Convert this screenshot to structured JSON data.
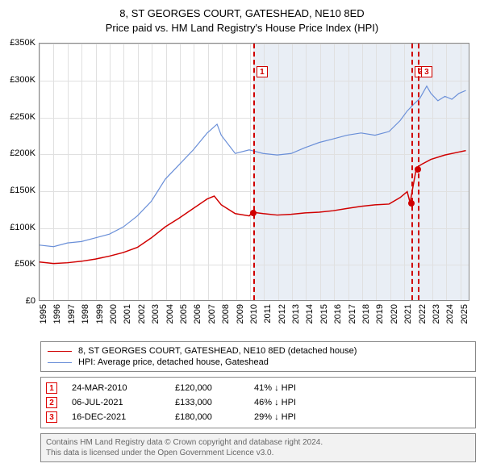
{
  "title_line1": "8, ST GEORGES COURT, GATESHEAD, NE10 8ED",
  "title_line2": "Price paid vs. HM Land Registry's House Price Index (HPI)",
  "chart": {
    "type": "line",
    "y_min": 0,
    "y_max": 350000,
    "y_ticks": [
      0,
      50000,
      100000,
      150000,
      200000,
      250000,
      300000,
      350000
    ],
    "y_tick_labels": [
      "£0",
      "£50K",
      "£100K",
      "£150K",
      "£200K",
      "£250K",
      "£300K",
      "£350K"
    ],
    "x_min": 1995,
    "x_max": 2025.7,
    "x_ticks": [
      1995,
      1996,
      1997,
      1998,
      1999,
      2000,
      2001,
      2002,
      2003,
      2004,
      2005,
      2006,
      2007,
      2008,
      2009,
      2010,
      2011,
      2012,
      2013,
      2014,
      2015,
      2016,
      2017,
      2018,
      2019,
      2020,
      2021,
      2022,
      2023,
      2024,
      2025
    ],
    "grid_color": "#e0e0e0",
    "background_color": "#ffffff",
    "shade_color": "#e9eef5",
    "shade_start": 2010.23,
    "series": [
      {
        "name": "property",
        "label": "8, ST GEORGES COURT, GATESHEAD, NE10 8ED (detached house)",
        "color": "#d00000",
        "width": 1.5,
        "data": [
          [
            1995,
            52000
          ],
          [
            1996,
            50000
          ],
          [
            1997,
            51000
          ],
          [
            1998,
            53000
          ],
          [
            1999,
            56000
          ],
          [
            2000,
            60000
          ],
          [
            2001,
            65000
          ],
          [
            2002,
            72000
          ],
          [
            2003,
            85000
          ],
          [
            2004,
            100000
          ],
          [
            2005,
            112000
          ],
          [
            2006,
            125000
          ],
          [
            2007,
            138000
          ],
          [
            2007.5,
            142000
          ],
          [
            2008,
            130000
          ],
          [
            2009,
            118000
          ],
          [
            2010,
            115000
          ],
          [
            2010.23,
            120000
          ],
          [
            2011,
            118000
          ],
          [
            2012,
            116000
          ],
          [
            2013,
            117000
          ],
          [
            2014,
            119000
          ],
          [
            2015,
            120000
          ],
          [
            2016,
            122000
          ],
          [
            2017,
            125000
          ],
          [
            2018,
            128000
          ],
          [
            2019,
            130000
          ],
          [
            2020,
            131000
          ],
          [
            2020.8,
            140000
          ],
          [
            2021.3,
            148000
          ],
          [
            2021.51,
            133000
          ],
          [
            2021.96,
            180000
          ],
          [
            2022.3,
            185000
          ],
          [
            2023,
            192000
          ],
          [
            2024,
            198000
          ],
          [
            2025,
            202000
          ],
          [
            2025.5,
            204000
          ]
        ]
      },
      {
        "name": "hpi",
        "label": "HPI: Average price, detached house, Gateshead",
        "color": "#6a8fd8",
        "width": 1.2,
        "data": [
          [
            1995,
            75000
          ],
          [
            1996,
            73000
          ],
          [
            1997,
            78000
          ],
          [
            1998,
            80000
          ],
          [
            1999,
            85000
          ],
          [
            2000,
            90000
          ],
          [
            2001,
            100000
          ],
          [
            2002,
            115000
          ],
          [
            2003,
            135000
          ],
          [
            2004,
            165000
          ],
          [
            2005,
            185000
          ],
          [
            2006,
            205000
          ],
          [
            2007,
            228000
          ],
          [
            2007.7,
            240000
          ],
          [
            2008,
            225000
          ],
          [
            2009,
            200000
          ],
          [
            2010,
            205000
          ],
          [
            2011,
            200000
          ],
          [
            2012,
            198000
          ],
          [
            2013,
            200000
          ],
          [
            2014,
            208000
          ],
          [
            2015,
            215000
          ],
          [
            2016,
            220000
          ],
          [
            2017,
            225000
          ],
          [
            2018,
            228000
          ],
          [
            2019,
            225000
          ],
          [
            2020,
            230000
          ],
          [
            2020.8,
            245000
          ],
          [
            2021.3,
            258000
          ],
          [
            2021.8,
            268000
          ],
          [
            2022.2,
            275000
          ],
          [
            2022.7,
            292000
          ],
          [
            2023,
            282000
          ],
          [
            2023.5,
            272000
          ],
          [
            2024,
            278000
          ],
          [
            2024.5,
            274000
          ],
          [
            2025,
            282000
          ],
          [
            2025.5,
            286000
          ]
        ]
      }
    ],
    "events": [
      {
        "idx": "1",
        "x": 2010.23,
        "price": 120000,
        "marker_y": 320000,
        "color": "#d00000"
      },
      {
        "idx": "2",
        "x": 2021.51,
        "price": 133000,
        "marker_y": 320000,
        "color": "#d00000"
      },
      {
        "idx": "3",
        "x": 2021.96,
        "price": 180000,
        "marker_y": 320000,
        "color": "#d00000"
      }
    ]
  },
  "legend": [
    {
      "color": "#d00000",
      "label": "8, ST GEORGES COURT, GATESHEAD, NE10 8ED (detached house)"
    },
    {
      "color": "#6a8fd8",
      "label": "HPI: Average price, detached house, Gateshead"
    }
  ],
  "transactions": [
    {
      "idx": "1",
      "date": "24-MAR-2010",
      "price": "£120,000",
      "diff": "41% ↓ HPI"
    },
    {
      "idx": "2",
      "date": "06-JUL-2021",
      "price": "£133,000",
      "diff": "46% ↓ HPI"
    },
    {
      "idx": "3",
      "date": "16-DEC-2021",
      "price": "£180,000",
      "diff": "29% ↓ HPI"
    }
  ],
  "attribution_l1": "Contains HM Land Registry data © Crown copyright and database right 2024.",
  "attribution_l2": "This data is licensed under the Open Government Licence v3.0."
}
